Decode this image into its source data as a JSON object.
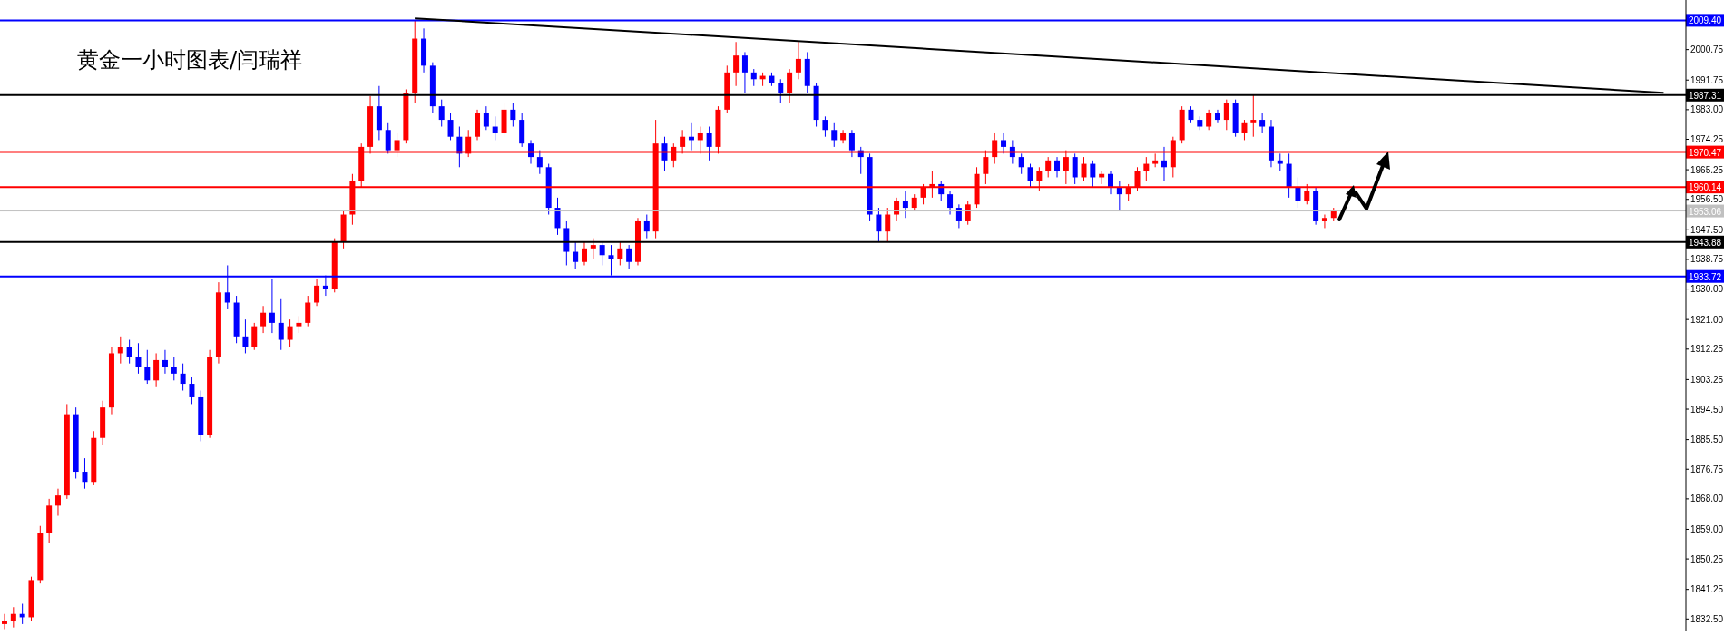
{
  "chart_data": {
    "type": "candlestick",
    "title": "黄金一小时图表/闫瑞祥",
    "categories": [
      null,
      null,
      null,
      null,
      null,
      null,
      null,
      null,
      null,
      null,
      null,
      null,
      null,
      null,
      null,
      null,
      null,
      null,
      null,
      null,
      null,
      null,
      null,
      null,
      null,
      null,
      null,
      null,
      null,
      null,
      null,
      null,
      null,
      null,
      null,
      null,
      null,
      null,
      null,
      null,
      null,
      null,
      null,
      null,
      null,
      null,
      null,
      null,
      null,
      null,
      null,
      null,
      null,
      null,
      null,
      null,
      null,
      null,
      null,
      null,
      null,
      null,
      null,
      null,
      null,
      null,
      null,
      null,
      null,
      null,
      null,
      null,
      null,
      null,
      null,
      null,
      null,
      null,
      null,
      null,
      null,
      null,
      null,
      null,
      null,
      null,
      null,
      null,
      null,
      null,
      null,
      null,
      null,
      null,
      null,
      null,
      null,
      null,
      null,
      null,
      null,
      null,
      null,
      null,
      null,
      null,
      null,
      null,
      null,
      null,
      null,
      null,
      null,
      null,
      null,
      null,
      null,
      null,
      null,
      null,
      null,
      null,
      null,
      null,
      null,
      null,
      null,
      null,
      null,
      null,
      null,
      null,
      null,
      null,
      null,
      null,
      null,
      null,
      null,
      null,
      null,
      null,
      null,
      null,
      null,
      null,
      null,
      null,
      null,
      null,
      null,
      null,
      null,
      null,
      null,
      null,
      null,
      null,
      null,
      null,
      null,
      null,
      null,
      null,
      null,
      null,
      null,
      null,
      null,
      null,
      null,
      null,
      null,
      null,
      null,
      null,
      null,
      null,
      null,
      null,
      null,
      null,
      null,
      null,
      null,
      null,
      null,
      null,
      null
    ],
    "ohlc": [
      [
        1831,
        1834,
        1829.5,
        1832
      ],
      [
        1832,
        1836,
        1830,
        1834
      ],
      [
        1834,
        1837,
        1831,
        1833
      ],
      [
        1833,
        1845,
        1832,
        1844
      ],
      [
        1844,
        1860,
        1843,
        1858
      ],
      [
        1858,
        1868,
        1855,
        1866
      ],
      [
        1866,
        1871,
        1863,
        1869
      ],
      [
        1869,
        1896,
        1868,
        1893
      ],
      [
        1893,
        1895,
        1874,
        1876
      ],
      [
        1876,
        1880,
        1871,
        1873
      ],
      [
        1873,
        1888,
        1872,
        1886
      ],
      [
        1886,
        1897,
        1884,
        1895
      ],
      [
        1895,
        1913,
        1893,
        1911
      ],
      [
        1911,
        1916,
        1908,
        1913
      ],
      [
        1913,
        1915,
        1908,
        1910
      ],
      [
        1910,
        1914,
        1905,
        1907
      ],
      [
        1907,
        1912,
        1902,
        1903
      ],
      [
        1903,
        1911,
        1901,
        1909
      ],
      [
        1909,
        1912,
        1905,
        1907
      ],
      [
        1907,
        1910,
        1903,
        1905
      ],
      [
        1905,
        1908,
        1900,
        1902
      ],
      [
        1902,
        1904,
        1896,
        1898
      ],
      [
        1898,
        1900,
        1885,
        1887
      ],
      [
        1887,
        1912,
        1886,
        1910
      ],
      [
        1910,
        1932,
        1908,
        1929
      ],
      [
        1929,
        1937,
        1924,
        1926
      ],
      [
        1926,
        1928,
        1914,
        1916
      ],
      [
        1916,
        1921,
        1911,
        1913
      ],
      [
        1913,
        1920,
        1912,
        1919
      ],
      [
        1919,
        1925,
        1917,
        1923
      ],
      [
        1923,
        1933,
        1917,
        1920
      ],
      [
        1920,
        1927,
        1912,
        1915
      ],
      [
        1915,
        1921,
        1913,
        1919
      ],
      [
        1919,
        1922,
        1917,
        1920
      ],
      [
        1920,
        1928,
        1919,
        1926
      ],
      [
        1926,
        1933,
        1925,
        1931
      ],
      [
        1931,
        1934,
        1928,
        1930
      ],
      [
        1930,
        1945,
        1929,
        1944
      ],
      [
        1944,
        1953,
        1942,
        1952
      ],
      [
        1952,
        1964,
        1949,
        1962
      ],
      [
        1962,
        1973,
        1960,
        1972
      ],
      [
        1972,
        1987,
        1970,
        1984
      ],
      [
        1984,
        1990,
        1974,
        1977
      ],
      [
        1977,
        1979,
        1970,
        1971
      ],
      [
        1971,
        1976,
        1969,
        1974
      ],
      [
        1974,
        1989,
        1973,
        1988
      ],
      [
        1988,
        2009.4,
        1985,
        2004
      ],
      [
        2004,
        2007,
        1994,
        1996
      ],
      [
        1996,
        1997,
        1982,
        1984
      ],
      [
        1984,
        1986,
        1978,
        1980
      ],
      [
        1980,
        1982,
        1974,
        1975
      ],
      [
        1975,
        1978,
        1966,
        1970
      ],
      [
        1970,
        1977,
        1969,
        1975
      ],
      [
        1975,
        1983,
        1974,
        1982
      ],
      [
        1982,
        1984,
        1977,
        1978
      ],
      [
        1978,
        1981,
        1974,
        1976
      ],
      [
        1976,
        1985,
        1975,
        1983
      ],
      [
        1983,
        1985,
        1978,
        1980
      ],
      [
        1980,
        1982,
        1972,
        1973
      ],
      [
        1973,
        1974,
        1967,
        1969
      ],
      [
        1969,
        1971,
        1964,
        1966
      ],
      [
        1966,
        1967,
        1952,
        1954
      ],
      [
        1954,
        1957,
        1946,
        1948
      ],
      [
        1948,
        1950,
        1937,
        1941
      ],
      [
        1941,
        1944,
        1936,
        1938
      ],
      [
        1938,
        1944,
        1937,
        1942
      ],
      [
        1942,
        1945,
        1939,
        1943
      ],
      [
        1943,
        1944,
        1937,
        1940
      ],
      [
        1940,
        1943,
        1934,
        1939
      ],
      [
        1939,
        1944,
        1937,
        1942
      ],
      [
        1942,
        1943,
        1936,
        1938
      ],
      [
        1938,
        1951,
        1937,
        1950
      ],
      [
        1950,
        1952,
        1945,
        1947
      ],
      [
        1947,
        1980,
        1945,
        1973
      ],
      [
        1973,
        1975,
        1965,
        1968
      ],
      [
        1968,
        1973,
        1966,
        1972
      ],
      [
        1972,
        1977,
        1970,
        1975
      ],
      [
        1975,
        1979,
        1971,
        1974
      ],
      [
        1974,
        1978,
        1970,
        1976
      ],
      [
        1976,
        1978,
        1968,
        1972
      ],
      [
        1972,
        1984,
        1970,
        1983
      ],
      [
        1983,
        1996,
        1982,
        1994
      ],
      [
        1994,
        2003,
        1990,
        1999
      ],
      [
        1999,
        2000,
        1988,
        1994
      ],
      [
        1994,
        1995,
        1990,
        1992
      ],
      [
        1992,
        1994,
        1990,
        1993
      ],
      [
        1993,
        1994,
        1990,
        1991
      ],
      [
        1991,
        1992,
        1985,
        1988
      ],
      [
        1988,
        1995,
        1985,
        1994
      ],
      [
        1994,
        2003,
        1992,
        1998
      ],
      [
        1998,
        2000,
        1988,
        1990
      ],
      [
        1990,
        1991,
        1978,
        1980
      ],
      [
        1980,
        1981,
        1975,
        1977
      ],
      [
        1977,
        1979,
        1972,
        1974
      ],
      [
        1974,
        1977,
        1973,
        1976
      ],
      [
        1976,
        1977,
        1969,
        1971
      ],
      [
        1971,
        1972,
        1964,
        1969
      ],
      [
        1969,
        1970,
        1950,
        1952
      ],
      [
        1952,
        1954,
        1944,
        1947
      ],
      [
        1947,
        1954,
        1944,
        1952
      ],
      [
        1952,
        1957,
        1950,
        1956
      ],
      [
        1956,
        1959,
        1951,
        1954
      ],
      [
        1954,
        1958,
        1953,
        1957
      ],
      [
        1957,
        1961,
        1955,
        1960
      ],
      [
        1960,
        1965,
        1957,
        1961
      ],
      [
        1961,
        1962,
        1956,
        1958
      ],
      [
        1958,
        1959,
        1952,
        1954
      ],
      [
        1954,
        1955,
        1948,
        1950
      ],
      [
        1950,
        1956,
        1949,
        1955
      ],
      [
        1955,
        1966,
        1954,
        1964
      ],
      [
        1964,
        1971,
        1961,
        1969
      ],
      [
        1969,
        1976,
        1967,
        1974
      ],
      [
        1974,
        1976,
        1970,
        1972
      ],
      [
        1972,
        1974,
        1967,
        1969
      ],
      [
        1969,
        1970,
        1964,
        1966
      ],
      [
        1966,
        1967,
        1960,
        1962
      ],
      [
        1962,
        1966,
        1959,
        1965
      ],
      [
        1965,
        1969,
        1963,
        1968
      ],
      [
        1968,
        1969,
        1963,
        1965
      ],
      [
        1965,
        1971,
        1961,
        1969
      ],
      [
        1969,
        1970,
        1961,
        1963
      ],
      [
        1963,
        1969,
        1962,
        1967
      ],
      [
        1967,
        1968,
        1960,
        1963
      ],
      [
        1963,
        1965,
        1961,
        1964
      ],
      [
        1964,
        1965,
        1958,
        1960
      ],
      [
        1960,
        1962,
        1953,
        1958
      ],
      [
        1958,
        1961,
        1956,
        1960
      ],
      [
        1960,
        1966,
        1959,
        1965
      ],
      [
        1965,
        1969,
        1962,
        1967
      ],
      [
        1967,
        1970,
        1966,
        1968
      ],
      [
        1968,
        1972,
        1962,
        1966
      ],
      [
        1966,
        1975,
        1963,
        1974
      ],
      [
        1974,
        1984,
        1973,
        1983
      ],
      [
        1983,
        1984,
        1979,
        1980
      ],
      [
        1980,
        1981,
        1977,
        1978
      ],
      [
        1978,
        1983,
        1977,
        1982
      ],
      [
        1982,
        1983,
        1979,
        1980
      ],
      [
        1980,
        1986,
        1977,
        1985
      ],
      [
        1985,
        1986,
        1975,
        1976
      ],
      [
        1976,
        1980,
        1974,
        1979
      ],
      [
        1979,
        1987.3,
        1975,
        1980
      ],
      [
        1980,
        1982,
        1976,
        1978
      ],
      [
        1978,
        1980,
        1966,
        1968
      ],
      [
        1968,
        1970,
        1965,
        1967
      ],
      [
        1967,
        1970,
        1957,
        1960
      ],
      [
        1960,
        1963,
        1954,
        1956
      ],
      [
        1956,
        1961,
        1955,
        1959
      ],
      [
        1959,
        1960,
        1949,
        1950
      ],
      [
        1950,
        1952,
        1948,
        1951
      ],
      [
        1951,
        1954,
        1950,
        1953.06
      ],
      null,
      null,
      null,
      null,
      null,
      null,
      null,
      null,
      null,
      null,
      null,
      null,
      null,
      null,
      null,
      null,
      null,
      null,
      null,
      null,
      null,
      null,
      null,
      null,
      null,
      null,
      null,
      null,
      null,
      null,
      null,
      null,
      null,
      null,
      null,
      null,
      null,
      null,
      null
    ],
    "colors": [
      "#ff0000",
      "#ff0000",
      "#0000ff",
      "#ff0000",
      "#ff0000",
      "#ff0000",
      "#ff0000",
      "#ff0000",
      "#0000ff",
      "#0000ff",
      "#ff0000",
      "#ff0000",
      "#ff0000",
      "#ff0000",
      "#0000ff",
      "#0000ff",
      "#0000ff",
      "#ff0000",
      "#0000ff",
      "#0000ff",
      "#0000ff",
      "#0000ff",
      "#0000ff",
      "#ff0000",
      "#ff0000",
      "#0000ff",
      "#0000ff",
      "#0000ff",
      "#ff0000",
      "#ff0000",
      "#0000ff",
      "#0000ff",
      "#ff0000",
      "#ff0000",
      "#ff0000",
      "#ff0000",
      "#0000ff",
      "#ff0000",
      "#ff0000",
      "#ff0000",
      "#ff0000",
      "#ff0000",
      "#0000ff",
      "#0000ff",
      "#ff0000",
      "#ff0000",
      "#ff0000",
      "#0000ff",
      "#0000ff",
      "#0000ff",
      "#0000ff",
      "#0000ff",
      "#ff0000",
      "#ff0000",
      "#0000ff",
      "#0000ff",
      "#ff0000",
      "#0000ff",
      "#0000ff",
      "#0000ff",
      "#0000ff",
      "#0000ff",
      "#0000ff",
      "#0000ff",
      "#0000ff",
      "#ff0000",
      "#ff0000",
      "#0000ff",
      "#0000ff",
      "#ff0000",
      "#0000ff",
      "#ff0000",
      "#0000ff",
      "#ff0000",
      "#0000ff",
      "#ff0000",
      "#ff0000",
      "#0000ff",
      "#ff0000",
      "#0000ff",
      "#ff0000",
      "#ff0000",
      "#ff0000",
      "#0000ff",
      "#0000ff",
      "#ff0000",
      "#0000ff",
      "#0000ff",
      "#ff0000",
      "#ff0000",
      "#0000ff",
      "#0000ff",
      "#0000ff",
      "#0000ff",
      "#ff0000",
      "#0000ff",
      "#0000ff",
      "#0000ff",
      "#0000ff",
      "#ff0000",
      "#ff0000",
      "#0000ff",
      "#ff0000",
      "#ff0000",
      "#ff0000",
      "#0000ff",
      "#0000ff",
      "#0000ff",
      "#ff0000",
      "#ff0000",
      "#ff0000",
      "#ff0000",
      "#0000ff",
      "#0000ff",
      "#0000ff",
      "#0000ff",
      "#ff0000",
      "#ff0000",
      "#0000ff",
      "#ff0000",
      "#0000ff",
      "#ff0000",
      "#0000ff",
      "#ff0000",
      "#0000ff",
      "#0000ff",
      "#ff0000",
      "#ff0000",
      "#ff0000",
      "#ff0000",
      "#0000ff",
      "#ff0000",
      "#ff0000",
      "#0000ff",
      "#0000ff",
      "#ff0000",
      "#0000ff",
      "#ff0000",
      "#0000ff",
      "#ff0000",
      "#ff0000",
      "#0000ff",
      "#0000ff",
      "#0000ff",
      "#0000ff",
      "#0000ff",
      "#ff0000",
      "#0000ff",
      "#ff0000",
      "#ff0000",
      null,
      null,
      null,
      null,
      null,
      null,
      null,
      null,
      null,
      null,
      null,
      null,
      null,
      null,
      null,
      null,
      null,
      null,
      null,
      null,
      null,
      null,
      null,
      null,
      null,
      null,
      null,
      null,
      null,
      null,
      null,
      null,
      null,
      null,
      null,
      null,
      null,
      null,
      null
    ],
    "series": [
      {
        "type": "line",
        "values": [
          null,
          null,
          null,
          null,
          null,
          null,
          null,
          null,
          null,
          null,
          null,
          null,
          null,
          null,
          null,
          null,
          null,
          null,
          null,
          null,
          null,
          null,
          null,
          null,
          null,
          null,
          null,
          null,
          null,
          null,
          null,
          null,
          null,
          null,
          null,
          null,
          null,
          null,
          null,
          null,
          null,
          null,
          null,
          null,
          null,
          null,
          2010,
          null,
          null,
          null,
          null,
          null,
          null,
          null,
          null,
          null,
          null,
          null,
          null,
          null,
          null,
          null,
          null,
          null,
          null,
          null,
          null,
          null,
          null,
          null,
          null,
          null,
          null,
          null,
          null,
          null,
          null,
          null,
          null,
          null,
          null,
          null,
          null,
          null,
          null,
          null,
          null,
          null,
          null,
          null,
          null,
          null,
          null,
          null,
          null,
          null,
          null,
          null,
          null,
          null,
          null,
          null,
          null,
          null,
          null,
          null,
          null,
          null,
          null,
          null,
          null,
          null,
          null,
          null,
          null,
          null,
          null,
          null,
          null,
          null,
          null,
          null,
          null,
          null,
          null,
          null,
          null,
          null,
          null,
          null,
          null,
          null,
          null,
          null,
          null,
          null,
          null,
          null,
          null,
          null,
          null,
          null,
          null,
          null,
          null,
          null,
          null,
          null,
          null,
          null,
          null,
          null,
          null,
          null,
          null,
          null,
          null,
          null,
          null,
          null,
          null,
          null,
          null,
          null,
          null,
          null,
          null,
          null,
          null,
          null,
          null,
          null,
          null,
          null,
          null,
          null,
          null,
          null,
          null,
          null,
          null,
          null,
          null,
          null,
          null,
          null,
          1988,
          null,
          null
        ],
        "color": "#000000"
      }
    ],
    "ylim": [
      1829.1,
      2015.4
    ],
    "yticks": [
      {
        "value": 2000.75,
        "label": "2000.75"
      },
      {
        "value": 1991.75,
        "label": "1991.75"
      },
      {
        "value": 1983,
        "label": "1983.00"
      },
      {
        "value": 1974.25,
        "label": "1974.25"
      },
      {
        "value": 1965.25,
        "label": "1965.25"
      },
      {
        "value": 1956.5,
        "label": "1956.50"
      },
      {
        "value": 1947.5,
        "label": "1947.50"
      },
      {
        "value": 1938.75,
        "label": "1938.75"
      },
      {
        "value": 1930,
        "label": "1930.00"
      },
      {
        "value": 1921,
        "label": "1921.00"
      },
      {
        "value": 1912.25,
        "label": "1912.25"
      },
      {
        "value": 1903.25,
        "label": "1903.25"
      },
      {
        "value": 1894.5,
        "label": "1894.50"
      },
      {
        "value": 1885.5,
        "label": "1885.50"
      },
      {
        "value": 1876.75,
        "label": "1876.75"
      },
      {
        "value": 1868,
        "label": "1868.00"
      },
      {
        "value": 1859,
        "label": "1859.00"
      },
      {
        "value": 1850.25,
        "label": "1850.25"
      },
      {
        "value": 1841.25,
        "label": "1841.25"
      },
      {
        "value": 1832.5,
        "label": "1832.50"
      }
    ],
    "ref_lines": [
      {
        "axis": "y",
        "value": 2009.4,
        "label": "2009.40",
        "color": "#0000ff"
      },
      {
        "axis": "y",
        "value": 1987.31,
        "label": "1987.31",
        "color": "#000000"
      },
      {
        "axis": "y",
        "value": 1970.47,
        "label": "1970.47",
        "color": "#ff0000"
      },
      {
        "axis": "y",
        "value": 1960.14,
        "label": "1960.14",
        "color": "#ff0000"
      },
      {
        "axis": "y",
        "value": 1953.06,
        "label": "1953.06",
        "color": "#c0c0c0"
      },
      {
        "axis": "y",
        "value": 1943.88,
        "label": "1943.88",
        "color": "#000000"
      },
      {
        "axis": "y",
        "value": 1933.72,
        "label": "1933.72",
        "color": "#0000ff"
      }
    ],
    "tick_labels": "y"
  }
}
